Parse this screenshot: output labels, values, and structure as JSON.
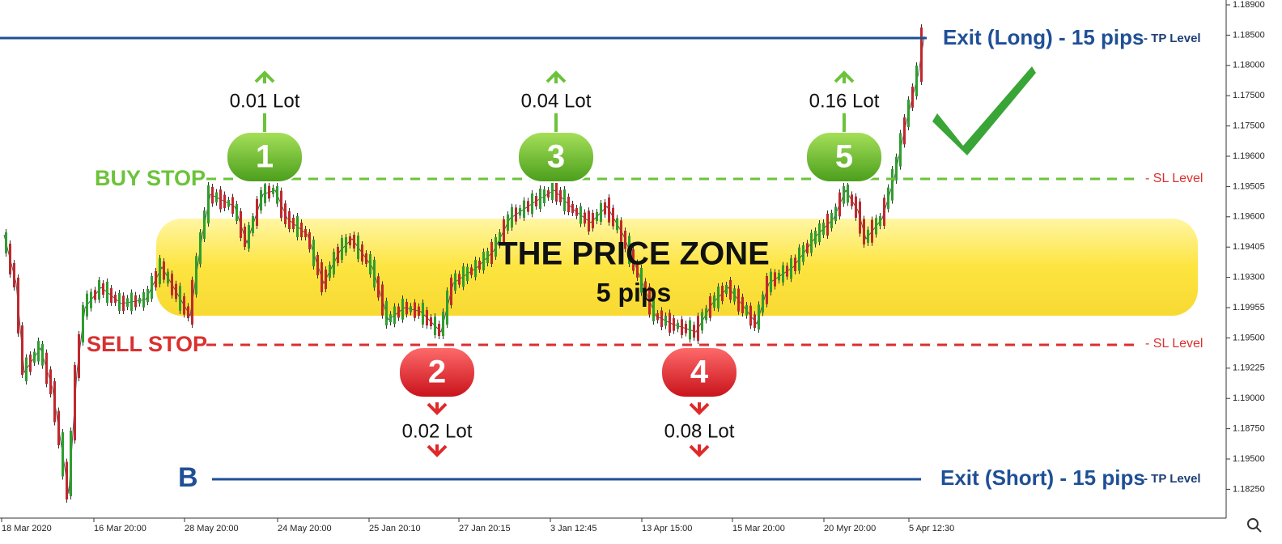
{
  "price_axis": [
    "1.18900",
    "1.18500",
    "1.18000",
    "1.17500",
    "1.17500",
    "1.19600",
    "1.19505",
    "1.19600",
    "1.19405",
    "1.19300",
    "1.19955",
    "1.19500",
    "1.19225",
    "1.19000",
    "1.18750",
    "1.19500",
    "1.18250"
  ],
  "date_axis": [
    "18 Mar 2020",
    "16 Mar 20:00",
    "28 May 20:00",
    "24 May 20:00",
    "25 Jan 20:10",
    "27 Jan 20:15",
    "3 Jan 12:45",
    "13 Apr 15:00",
    "15 Mar 20:00",
    "20 Myr 20:00",
    "5 Apr 12:30"
  ],
  "exit_long": {
    "label": "Exit (Long) - 15 pips",
    "level": "- TP Level"
  },
  "exit_short": {
    "marker": "B",
    "label": "Exit (Short) - 15 pips",
    "level": "- TP Level"
  },
  "buy_stop": {
    "label": "BUY STOP",
    "level": "- SL Level"
  },
  "sell_stop": {
    "label": "SELL STOP",
    "level": "- SL Level"
  },
  "zone": {
    "title": "THE PRICE ZONE",
    "subtitle": "5 pips"
  },
  "orders": [
    {
      "number": "1",
      "lot": "0.01 Lot"
    },
    {
      "number": "2",
      "lot": "0.02 Lot"
    },
    {
      "number": "3",
      "lot": "0.04 Lot"
    },
    {
      "number": "4",
      "lot": "0.08 Lot"
    },
    {
      "number": "5",
      "lot": "0.16 Lot"
    }
  ]
}
